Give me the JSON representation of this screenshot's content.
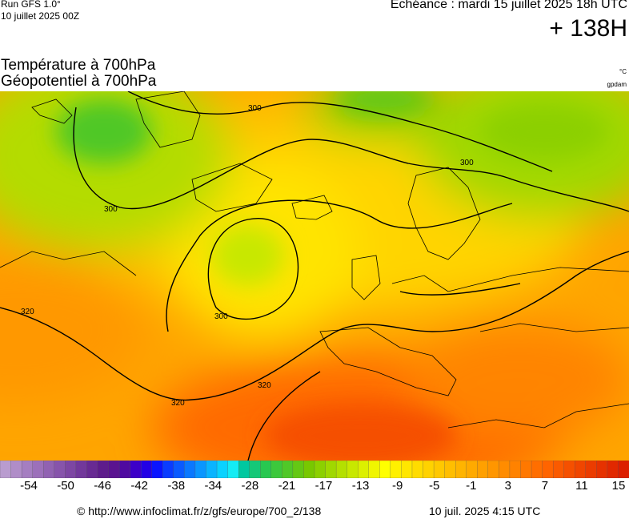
{
  "header": {
    "run": "Run GFS 1.0°",
    "run_date": "10 juillet 2025 00Z",
    "valid_time": "Echéance : mardi 15 juillet 2025 18h UTC",
    "lead_time": "+ 138H"
  },
  "titles": {
    "line1": "Température à 700hPa",
    "line2": "Géopotentiel à 700hPa",
    "unit_temperature": "°C",
    "unit_geopotential": "gpdam"
  },
  "map": {
    "region": "europe",
    "contour_labels": [
      "300",
      "300",
      "300",
      "300",
      "320",
      "320",
      "320"
    ]
  },
  "colorbar": {
    "ticks": [
      "-54",
      "-50",
      "-46",
      "-42",
      "-38",
      "-34",
      "-28",
      "-21",
      "-17",
      "-13",
      "-9",
      "-5",
      "-1",
      "3",
      "7",
      "11",
      "15"
    ],
    "colors": [
      "#b99ccf",
      "#b08dc8",
      "#a57ec1",
      "#9c70ba",
      "#9162b2",
      "#8754ab",
      "#7d46a3",
      "#72389b",
      "#682a93",
      "#5e1c8c",
      "#5a1390",
      "#4f0aa0",
      "#3c00c8",
      "#2200e6",
      "#0a14ff",
      "#0a3cff",
      "#0a5aff",
      "#0a78ff",
      "#0a96ff",
      "#0ab4ff",
      "#0ad2ff",
      "#14ecf4",
      "#00c8a0",
      "#14c878",
      "#28c850",
      "#3cc83c",
      "#50c828",
      "#64c814",
      "#78c800",
      "#8cd000",
      "#a0d800",
      "#b4e000",
      "#c8e800",
      "#dcf000",
      "#f0f500",
      "#ffff00",
      "#fff000",
      "#ffe600",
      "#ffdc00",
      "#ffd200",
      "#ffc800",
      "#ffbe00",
      "#ffb400",
      "#ffaa00",
      "#ffa000",
      "#ff9600",
      "#ff8c00",
      "#ff8200",
      "#ff7800",
      "#ff6e00",
      "#ff6400",
      "#fa5a00",
      "#f55000",
      "#f04600",
      "#eb3c00",
      "#e63200",
      "#e12800",
      "#dc1e00"
    ]
  },
  "footer": {
    "credit": "© http://www.infoclimat.fr/z/gfs/europe/700_2/138",
    "generated": "10 juil. 2025  4:15 UTC"
  }
}
